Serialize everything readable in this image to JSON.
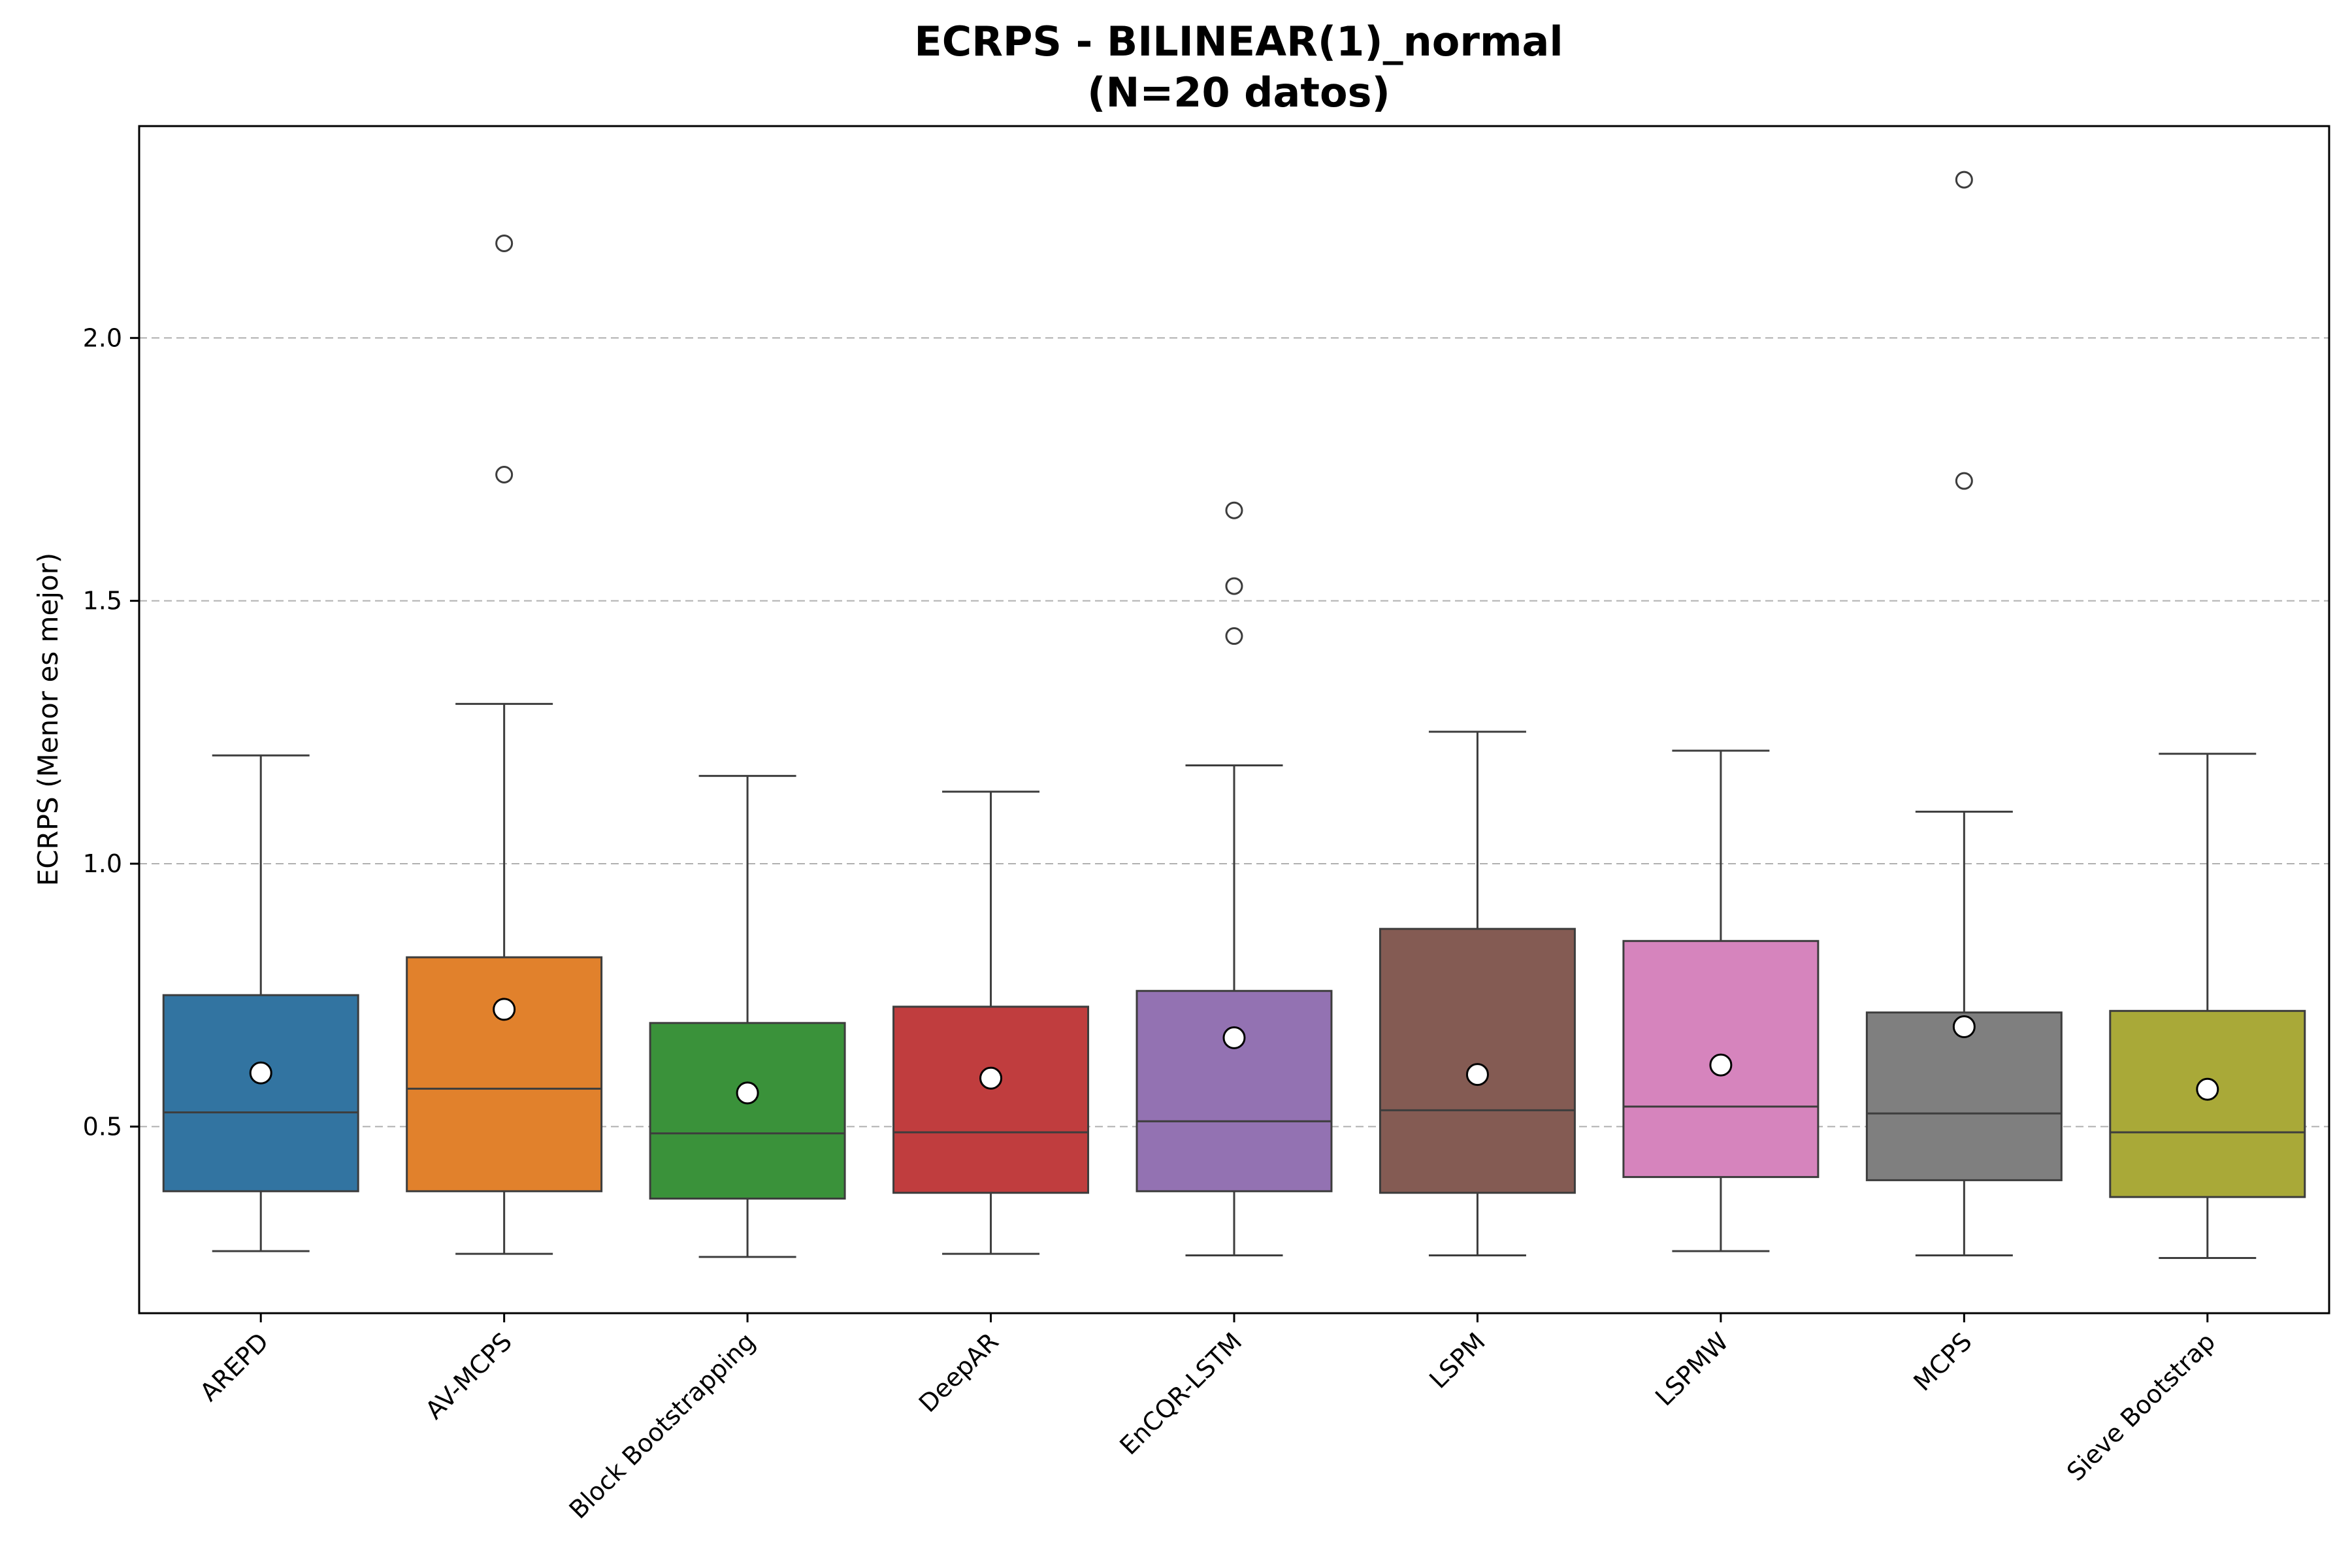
{
  "chart_data": {
    "type": "box",
    "title_line1": "ECRPS - BILINEAR(1)_normal",
    "title_line2": "(N=20 datos)",
    "xlabel": "",
    "ylabel": "ECRPS (Menor es mejor)",
    "ylim": [
      0.145,
      2.403
    ],
    "yticks": [
      "0.5",
      "1.0",
      "1.5",
      "2.0"
    ],
    "grid": "y-dashed",
    "categories": [
      "AREPD",
      "AV-MCPS",
      "Block Bootstrapping",
      "DeepAR",
      "EnCQR-LSTM",
      "LSPM",
      "LSPMW",
      "MCPS",
      "Sieve Bootstrap"
    ],
    "boxes": [
      {
        "name": "AREPD",
        "color": "#3274a1",
        "whisker_low": 0.263,
        "q1": 0.377,
        "median": 0.527,
        "q3": 0.75,
        "whisker_high": 1.206,
        "mean": 0.602,
        "outliers": []
      },
      {
        "name": "AV-MCPS",
        "color": "#e1812c",
        "whisker_low": 0.258,
        "q1": 0.377,
        "median": 0.572,
        "q3": 0.822,
        "whisker_high": 1.304,
        "mean": 0.723,
        "outliers": [
          2.18,
          1.74
        ]
      },
      {
        "name": "Block Bootstrapping",
        "color": "#3a923a",
        "whisker_low": 0.252,
        "q1": 0.363,
        "median": 0.487,
        "q3": 0.697,
        "whisker_high": 1.167,
        "mean": 0.564,
        "outliers": []
      },
      {
        "name": "DeepAR",
        "color": "#c03d3e",
        "whisker_low": 0.258,
        "q1": 0.374,
        "median": 0.489,
        "q3": 0.728,
        "whisker_high": 1.137,
        "mean": 0.592,
        "outliers": []
      },
      {
        "name": "EnCQR-LSTM",
        "color": "#9372b2",
        "whisker_low": 0.255,
        "q1": 0.377,
        "median": 0.51,
        "q3": 0.758,
        "whisker_high": 1.187,
        "mean": 0.669,
        "outliers": [
          1.672,
          1.528,
          1.433
        ]
      },
      {
        "name": "LSPM",
        "color": "#845b53",
        "whisker_low": 0.255,
        "q1": 0.374,
        "median": 0.531,
        "q3": 0.876,
        "whisker_high": 1.251,
        "mean": 0.599,
        "outliers": []
      },
      {
        "name": "LSPMW",
        "color": "#d684bd",
        "whisker_low": 0.263,
        "q1": 0.404,
        "median": 0.538,
        "q3": 0.853,
        "whisker_high": 1.215,
        "mean": 0.617,
        "outliers": []
      },
      {
        "name": "MCPS",
        "color": "#7f7f7f",
        "whisker_low": 0.255,
        "q1": 0.398,
        "median": 0.525,
        "q3": 0.717,
        "whisker_high": 1.099,
        "mean": 0.69,
        "outliers": [
          2.301,
          1.728
        ]
      },
      {
        "name": "Sieve Bootstrap",
        "color": "#a9a938",
        "whisker_low": 0.25,
        "q1": 0.366,
        "median": 0.489,
        "q3": 0.72,
        "whisker_high": 1.209,
        "mean": 0.571,
        "outliers": []
      }
    ]
  }
}
